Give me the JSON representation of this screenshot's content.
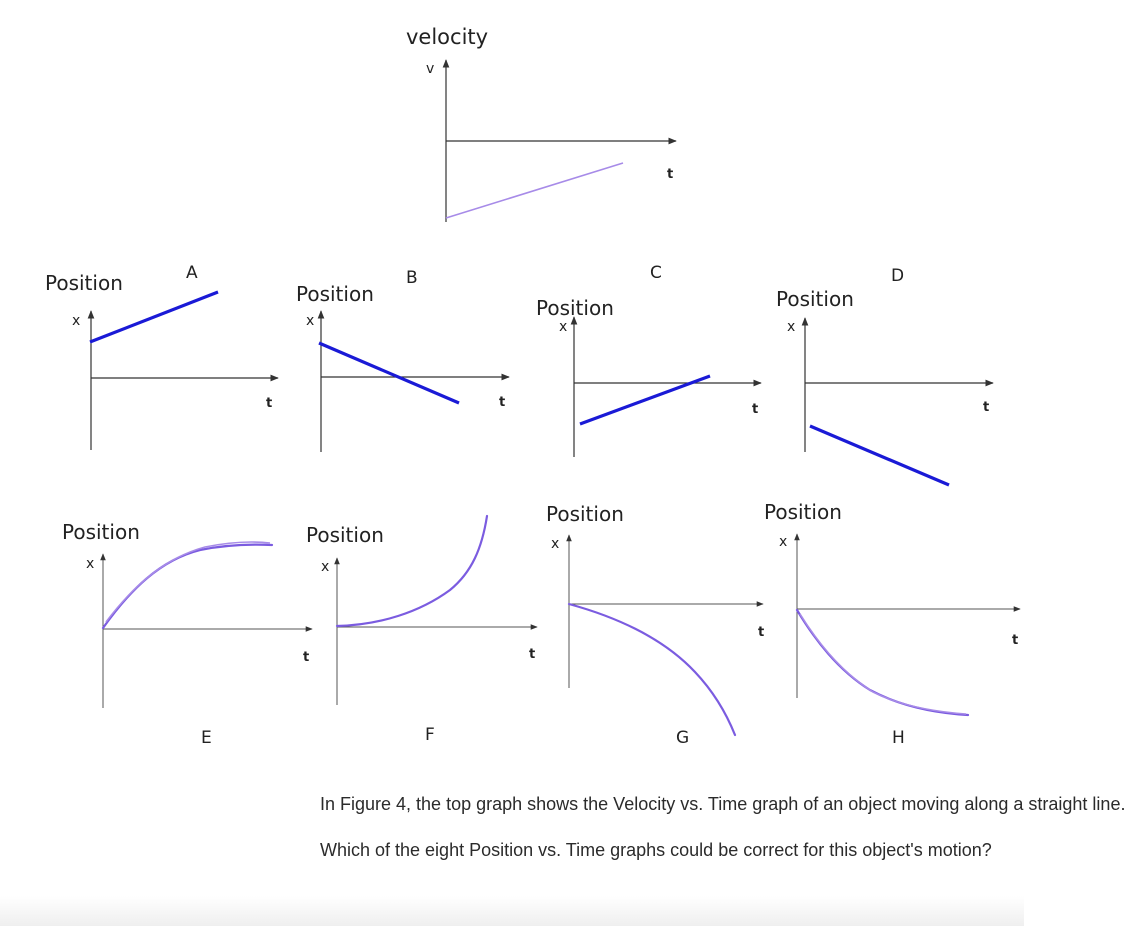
{
  "velocity_graph": {
    "title": "velocity",
    "y_axis": "v",
    "x_axis": "t"
  },
  "top_row": [
    {
      "letter": "A",
      "title": "Position",
      "y_axis": "x",
      "x_axis": "t",
      "shape": "straight line, positive intercept, increasing"
    },
    {
      "letter": "B",
      "title": "Position",
      "y_axis": "x",
      "x_axis": "t",
      "shape": "straight line, positive intercept, decreasing"
    },
    {
      "letter": "C",
      "title": "Position",
      "y_axis": "x",
      "x_axis": "t",
      "shape": "straight line, negative intercept, increasing"
    },
    {
      "letter": "D",
      "title": "Position",
      "y_axis": "x",
      "x_axis": "t",
      "shape": "straight line, negative intercept, decreasing"
    }
  ],
  "bottom_row": [
    {
      "letter": "E",
      "title": "Position",
      "y_axis": "x",
      "x_axis": "t",
      "shape": "curve rising, concave down"
    },
    {
      "letter": "F",
      "title": "Position",
      "y_axis": "x",
      "x_axis": "t",
      "shape": "curve rising, concave up"
    },
    {
      "letter": "G",
      "title": "Position",
      "y_axis": "x",
      "x_axis": "t",
      "shape": "curve falling, concave down"
    },
    {
      "letter": "H",
      "title": "Position",
      "y_axis": "x",
      "x_axis": "t",
      "shape": "curve falling, concave up"
    }
  ],
  "colors": {
    "straight_lines": "#1a1ad6",
    "curves": "#7b5ce0"
  },
  "question": {
    "line1": "In Figure 4, the top graph shows the Velocity vs. Time graph of an object moving along a straight line.",
    "line2": "Which of the eight Position vs. Time graphs could be correct for this object's motion?"
  }
}
